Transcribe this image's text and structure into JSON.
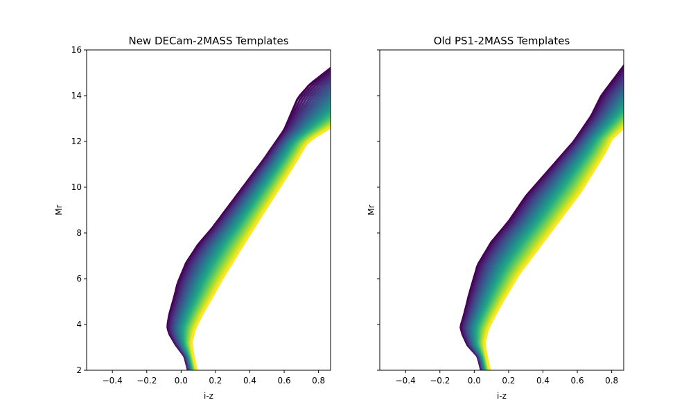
{
  "chart_data": [
    {
      "type": "line",
      "title": "New DECam-2MASS Templates",
      "xlabel": "i-z",
      "ylabel": "Mr",
      "xlim": [
        -0.55,
        0.87
      ],
      "ylim": [
        2,
        16
      ],
      "xticks": [
        "−0.4",
        "−0.2",
        "0.0",
        "0.2",
        "0.4",
        "0.6",
        "0.8"
      ],
      "yticks": [
        "2",
        "4",
        "6",
        "8",
        "10",
        "12",
        "14",
        "16"
      ],
      "show_y_tick_labels": true,
      "grid": false,
      "colormap": "viridis",
      "series_count": 30,
      "envelope": {
        "left_edge": [
          [
            0.04,
            2.0
          ],
          [
            0.02,
            2.6
          ],
          [
            -0.03,
            3.1
          ],
          [
            -0.07,
            3.6
          ],
          [
            -0.08,
            3.9
          ],
          [
            -0.07,
            4.4
          ],
          [
            -0.04,
            5.2
          ],
          [
            -0.02,
            5.8
          ],
          [
            0.03,
            6.7
          ],
          [
            0.1,
            7.5
          ],
          [
            0.18,
            8.2
          ],
          [
            0.26,
            9.0
          ],
          [
            0.36,
            10.0
          ],
          [
            0.48,
            11.2
          ],
          [
            0.6,
            12.5
          ],
          [
            0.68,
            13.9
          ],
          [
            0.75,
            14.5
          ],
          [
            0.87,
            15.2
          ]
        ],
        "right_edge": [
          [
            0.09,
            2.0
          ],
          [
            0.07,
            2.7
          ],
          [
            0.06,
            3.2
          ],
          [
            0.08,
            3.8
          ],
          [
            0.12,
            4.4
          ],
          [
            0.18,
            5.2
          ],
          [
            0.24,
            6.0
          ],
          [
            0.33,
            7.1
          ],
          [
            0.43,
            8.3
          ],
          [
            0.54,
            9.6
          ],
          [
            0.65,
            10.9
          ],
          [
            0.73,
            11.9
          ],
          [
            0.78,
            12.2
          ],
          [
            0.87,
            12.6
          ]
        ]
      }
    },
    {
      "type": "line",
      "title": "Old PS1-2MASS Templates",
      "xlabel": "i-z",
      "ylabel": "Mr",
      "xlim": [
        -0.55,
        0.87
      ],
      "ylim": [
        2,
        16
      ],
      "xticks": [
        "−0.4",
        "−0.2",
        "0.0",
        "0.2",
        "0.4",
        "0.6",
        "0.8"
      ],
      "yticks": [
        "2",
        "4",
        "6",
        "8",
        "10",
        "12",
        "14",
        "16"
      ],
      "show_y_tick_labels": false,
      "grid": false,
      "colormap": "viridis",
      "series_count": 30,
      "envelope": {
        "left_edge": [
          [
            0.04,
            2.0
          ],
          [
            0.02,
            2.6
          ],
          [
            -0.04,
            3.1
          ],
          [
            -0.07,
            3.6
          ],
          [
            -0.08,
            3.9
          ],
          [
            -0.06,
            4.4
          ],
          [
            -0.03,
            5.3
          ],
          [
            0.02,
            6.6
          ],
          [
            0.1,
            7.6
          ],
          [
            0.2,
            8.5
          ],
          [
            0.3,
            9.6
          ],
          [
            0.44,
            10.8
          ],
          [
            0.58,
            12.0
          ],
          [
            0.68,
            13.1
          ],
          [
            0.74,
            14.0
          ],
          [
            0.87,
            15.3
          ]
        ],
        "right_edge": [
          [
            0.09,
            2.0
          ],
          [
            0.07,
            2.7
          ],
          [
            0.06,
            3.2
          ],
          [
            0.08,
            3.8
          ],
          [
            0.12,
            4.4
          ],
          [
            0.18,
            5.2
          ],
          [
            0.26,
            6.2
          ],
          [
            0.38,
            7.4
          ],
          [
            0.5,
            8.6
          ],
          [
            0.62,
            9.8
          ],
          [
            0.71,
            10.9
          ],
          [
            0.76,
            11.5
          ],
          [
            0.8,
            12.1
          ],
          [
            0.87,
            12.6
          ]
        ]
      }
    }
  ]
}
